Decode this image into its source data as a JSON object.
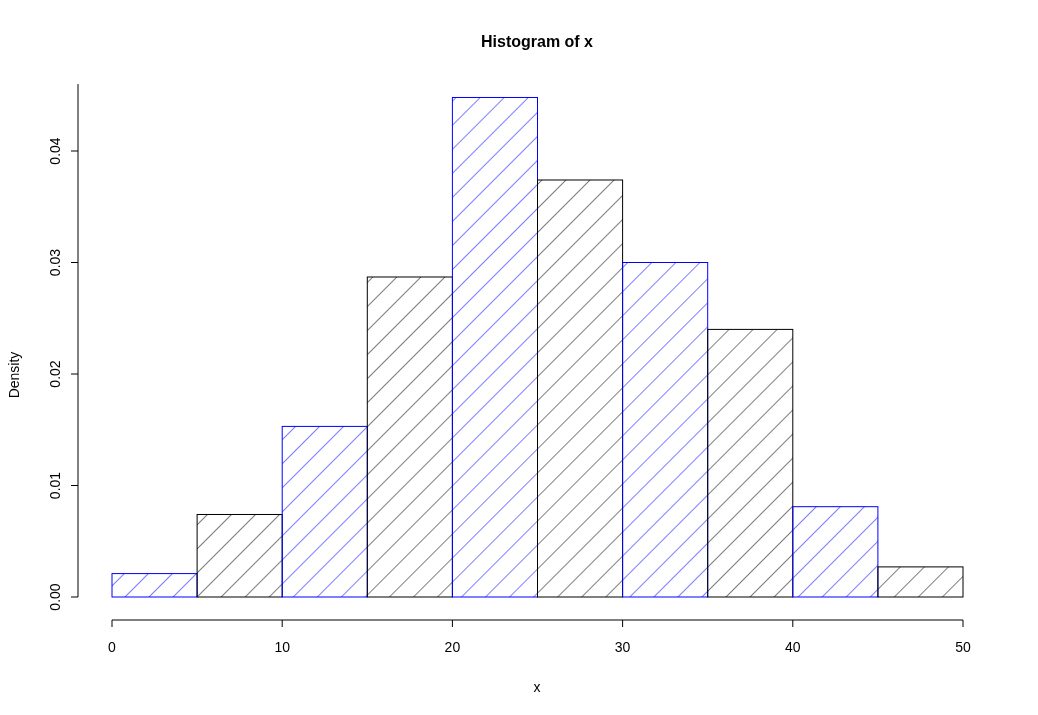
{
  "chart_data": {
    "type": "histogram",
    "title": "Histogram of x",
    "xlabel": "x",
    "ylabel": "Density",
    "bins": [
      0,
      5,
      10,
      15,
      20,
      25,
      30,
      35,
      40,
      45,
      50
    ],
    "values": [
      0.0021,
      0.0074,
      0.0153,
      0.0287,
      0.0448,
      0.0374,
      0.03,
      0.024,
      0.0081,
      0.0027
    ],
    "colors": [
      "#0000ff",
      "#000000",
      "#0000ff",
      "#000000",
      "#0000ff",
      "#000000",
      "#0000ff",
      "#000000",
      "#0000ff",
      "#000000"
    ],
    "xlim": [
      0,
      50
    ],
    "xticks": [
      0,
      10,
      20,
      30,
      40,
      50
    ],
    "ylim": [
      0,
      0.046
    ],
    "yticks": [
      {
        "value": 0,
        "label": "0.00"
      },
      {
        "value": 0.01,
        "label": "0.01"
      },
      {
        "value": 0.02,
        "label": "0.02"
      },
      {
        "value": 0.03,
        "label": "0.03"
      },
      {
        "value": 0.04,
        "label": "0.04"
      }
    ],
    "grid": false
  }
}
